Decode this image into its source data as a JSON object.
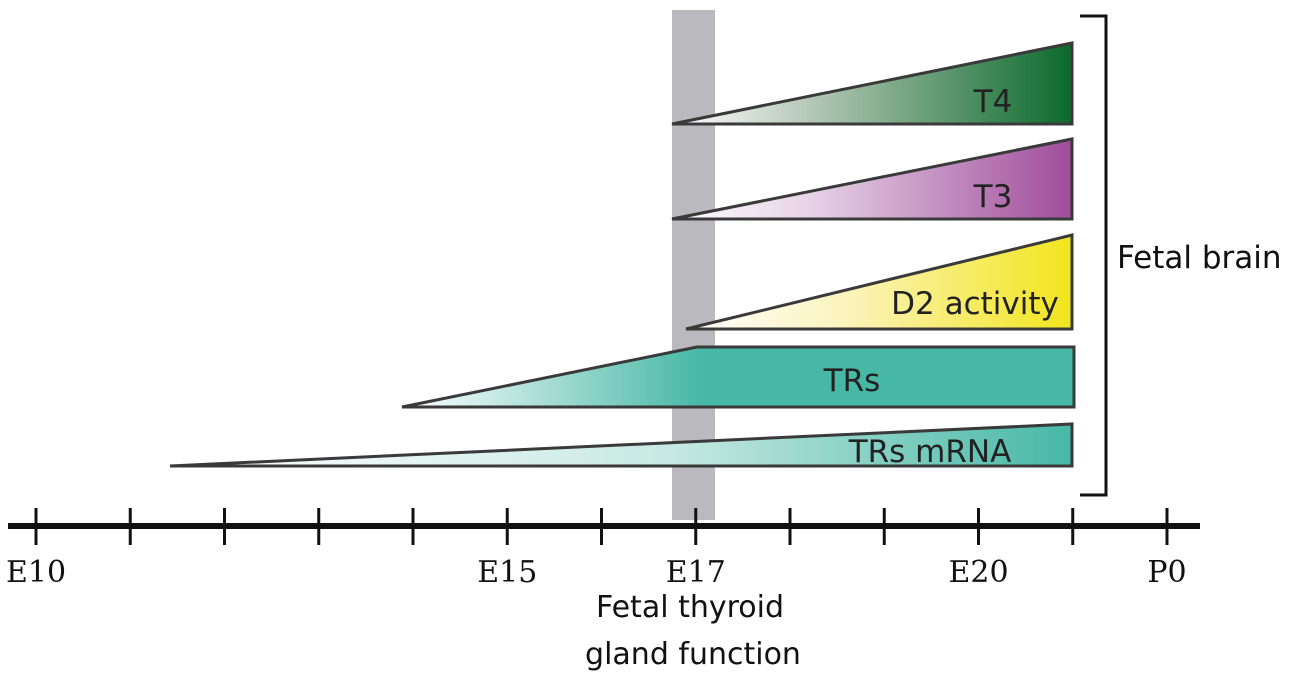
{
  "diagram": {
    "timeline": {
      "ticks": [
        "E10",
        "",
        "",
        "",
        "",
        "E15",
        "",
        "E17",
        "",
        "",
        "E20",
        "",
        "P0"
      ]
    },
    "bars": [
      {
        "key": "t4",
        "label": "T4",
        "color": "#0b6a2c"
      },
      {
        "key": "t3",
        "label": "T3",
        "color": "#a04c9a"
      },
      {
        "key": "d2",
        "label": "D2 activity",
        "color": "#f2e51c"
      },
      {
        "key": "trs",
        "label": "TRs",
        "color": "#47b8a6"
      },
      {
        "key": "trs_mrna",
        "label": "TRs mRNA",
        "color": "#47b8a6"
      }
    ],
    "bracket_label": "Fetal brain",
    "caption_line1": "Fetal thyroid",
    "caption_line2": "gland function",
    "marker_color": "#b9b9be"
  }
}
